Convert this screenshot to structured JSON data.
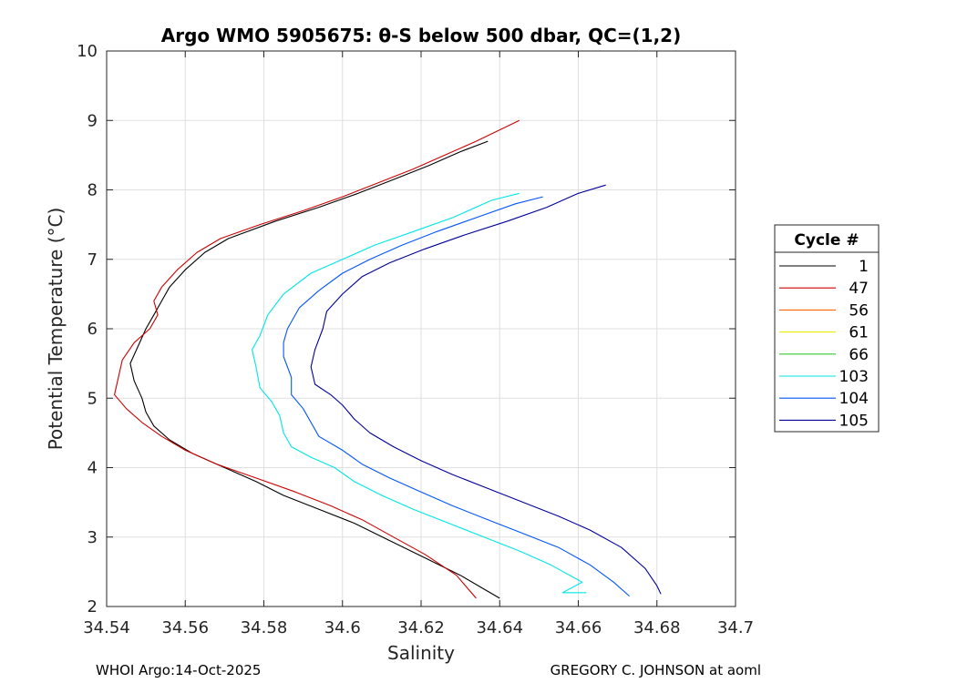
{
  "chart_data": {
    "type": "line",
    "title": "Argo WMO 5905675: θ-S below 500 dbar,  QC=(1,2)",
    "xlabel": "Salinity",
    "ylabel": "Potential Temperature (°C)",
    "xlim": [
      34.54,
      34.7
    ],
    "ylim": [
      2,
      10
    ],
    "xticks": [
      "34.54",
      "34.56",
      "34.58",
      "34.6",
      "34.62",
      "34.64",
      "34.66",
      "34.68",
      "34.7"
    ],
    "yticks": [
      "2",
      "3",
      "4",
      "5",
      "6",
      "7",
      "8",
      "9",
      "10"
    ],
    "grid": true,
    "legend_title": "Cycle #",
    "legend_position": "outside-right",
    "series": [
      {
        "name": "1",
        "color": "#000000",
        "points": [
          [
            34.637,
            8.7
          ],
          [
            34.63,
            8.55
          ],
          [
            34.622,
            8.35
          ],
          [
            34.613,
            8.15
          ],
          [
            34.604,
            7.95
          ],
          [
            34.594,
            7.75
          ],
          [
            34.583,
            7.55
          ],
          [
            34.571,
            7.3
          ],
          [
            34.565,
            7.1
          ],
          [
            34.56,
            6.85
          ],
          [
            34.556,
            6.6
          ],
          [
            34.554,
            6.4
          ],
          [
            34.552,
            6.2
          ],
          [
            34.55,
            6.0
          ],
          [
            34.548,
            5.75
          ],
          [
            34.546,
            5.5
          ],
          [
            34.547,
            5.25
          ],
          [
            34.549,
            5.0
          ],
          [
            34.55,
            4.8
          ],
          [
            34.552,
            4.6
          ],
          [
            34.556,
            4.4
          ],
          [
            34.562,
            4.2
          ],
          [
            34.57,
            4.0
          ],
          [
            34.578,
            3.8
          ],
          [
            34.585,
            3.6
          ],
          [
            34.594,
            3.4
          ],
          [
            34.603,
            3.2
          ],
          [
            34.612,
            2.95
          ],
          [
            34.621,
            2.7
          ],
          [
            34.63,
            2.45
          ],
          [
            34.636,
            2.25
          ],
          [
            34.64,
            2.12
          ]
        ]
      },
      {
        "name": "47",
        "color": "#cc0000",
        "points": [
          [
            34.645,
            9.0
          ],
          [
            34.634,
            8.7
          ],
          [
            34.626,
            8.5
          ],
          [
            34.618,
            8.3
          ],
          [
            34.609,
            8.1
          ],
          [
            34.6,
            7.9
          ],
          [
            34.59,
            7.7
          ],
          [
            34.579,
            7.5
          ],
          [
            34.569,
            7.3
          ],
          [
            34.563,
            7.1
          ],
          [
            34.558,
            6.85
          ],
          [
            34.554,
            6.6
          ],
          [
            34.552,
            6.4
          ],
          [
            34.553,
            6.2
          ],
          [
            34.551,
            6.0
          ],
          [
            34.547,
            5.8
          ],
          [
            34.544,
            5.55
          ],
          [
            34.543,
            5.3
          ],
          [
            34.542,
            5.05
          ],
          [
            34.545,
            4.85
          ],
          [
            34.549,
            4.65
          ],
          [
            34.554,
            4.45
          ],
          [
            34.56,
            4.25
          ],
          [
            34.568,
            4.05
          ],
          [
            34.578,
            3.85
          ],
          [
            34.588,
            3.65
          ],
          [
            34.597,
            3.45
          ],
          [
            34.605,
            3.25
          ],
          [
            34.613,
            3.0
          ],
          [
            34.621,
            2.75
          ],
          [
            34.629,
            2.45
          ],
          [
            34.634,
            2.12
          ]
        ]
      },
      {
        "name": "56",
        "color": "#ff6600",
        "points": []
      },
      {
        "name": "61",
        "color": "#eeee00",
        "points": []
      },
      {
        "name": "66",
        "color": "#33cc33",
        "points": []
      },
      {
        "name": "103",
        "color": "#00e5e5",
        "points": [
          [
            34.645,
            7.95
          ],
          [
            34.638,
            7.85
          ],
          [
            34.628,
            7.6
          ],
          [
            34.618,
            7.4
          ],
          [
            34.608,
            7.2
          ],
          [
            34.6,
            7.0
          ],
          [
            34.592,
            6.8
          ],
          [
            34.585,
            6.5
          ],
          [
            34.581,
            6.2
          ],
          [
            34.579,
            5.9
          ],
          [
            34.577,
            5.7
          ],
          [
            34.578,
            5.45
          ],
          [
            34.579,
            5.15
          ],
          [
            34.582,
            4.95
          ],
          [
            34.584,
            4.75
          ],
          [
            34.585,
            4.5
          ],
          [
            34.587,
            4.3
          ],
          [
            34.592,
            4.15
          ],
          [
            34.598,
            4.0
          ],
          [
            34.603,
            3.8
          ],
          [
            34.61,
            3.6
          ],
          [
            34.618,
            3.4
          ],
          [
            34.627,
            3.2
          ],
          [
            34.636,
            3.0
          ],
          [
            34.645,
            2.8
          ],
          [
            34.653,
            2.6
          ],
          [
            34.661,
            2.35
          ],
          [
            34.656,
            2.2
          ],
          [
            34.662,
            2.2
          ]
        ]
      },
      {
        "name": "104",
        "color": "#0055ff",
        "points": [
          [
            34.651,
            7.9
          ],
          [
            34.644,
            7.8
          ],
          [
            34.634,
            7.6
          ],
          [
            34.624,
            7.4
          ],
          [
            34.615,
            7.2
          ],
          [
            34.607,
            7.0
          ],
          [
            34.6,
            6.8
          ],
          [
            34.594,
            6.55
          ],
          [
            34.589,
            6.3
          ],
          [
            34.586,
            6.0
          ],
          [
            34.585,
            5.8
          ],
          [
            34.585,
            5.6
          ],
          [
            34.587,
            5.3
          ],
          [
            34.587,
            5.05
          ],
          [
            34.59,
            4.85
          ],
          [
            34.592,
            4.65
          ],
          [
            34.594,
            4.45
          ],
          [
            34.6,
            4.25
          ],
          [
            34.605,
            4.05
          ],
          [
            34.612,
            3.85
          ],
          [
            34.62,
            3.65
          ],
          [
            34.628,
            3.45
          ],
          [
            34.637,
            3.25
          ],
          [
            34.646,
            3.05
          ],
          [
            34.655,
            2.85
          ],
          [
            34.663,
            2.6
          ],
          [
            34.669,
            2.35
          ],
          [
            34.673,
            2.15
          ]
        ]
      },
      {
        "name": "105",
        "color": "#000099",
        "points": [
          [
            34.667,
            8.07
          ],
          [
            34.66,
            7.95
          ],
          [
            34.652,
            7.75
          ],
          [
            34.642,
            7.55
          ],
          [
            34.631,
            7.35
          ],
          [
            34.621,
            7.15
          ],
          [
            34.612,
            6.95
          ],
          [
            34.605,
            6.75
          ],
          [
            34.6,
            6.5
          ],
          [
            34.596,
            6.25
          ],
          [
            34.595,
            6.0
          ],
          [
            34.593,
            5.7
          ],
          [
            34.592,
            5.45
          ],
          [
            34.593,
            5.2
          ],
          [
            34.597,
            5.05
          ],
          [
            34.6,
            4.9
          ],
          [
            34.603,
            4.7
          ],
          [
            34.607,
            4.5
          ],
          [
            34.613,
            4.3
          ],
          [
            34.62,
            4.1
          ],
          [
            34.628,
            3.9
          ],
          [
            34.637,
            3.7
          ],
          [
            34.646,
            3.5
          ],
          [
            34.655,
            3.3
          ],
          [
            34.663,
            3.1
          ],
          [
            34.671,
            2.85
          ],
          [
            34.677,
            2.55
          ],
          [
            34.68,
            2.3
          ],
          [
            34.681,
            2.18
          ]
        ]
      }
    ]
  },
  "footer": {
    "left": "WHOI Argo:14-Oct-2025",
    "right": "GREGORY C. JOHNSON at aoml"
  }
}
